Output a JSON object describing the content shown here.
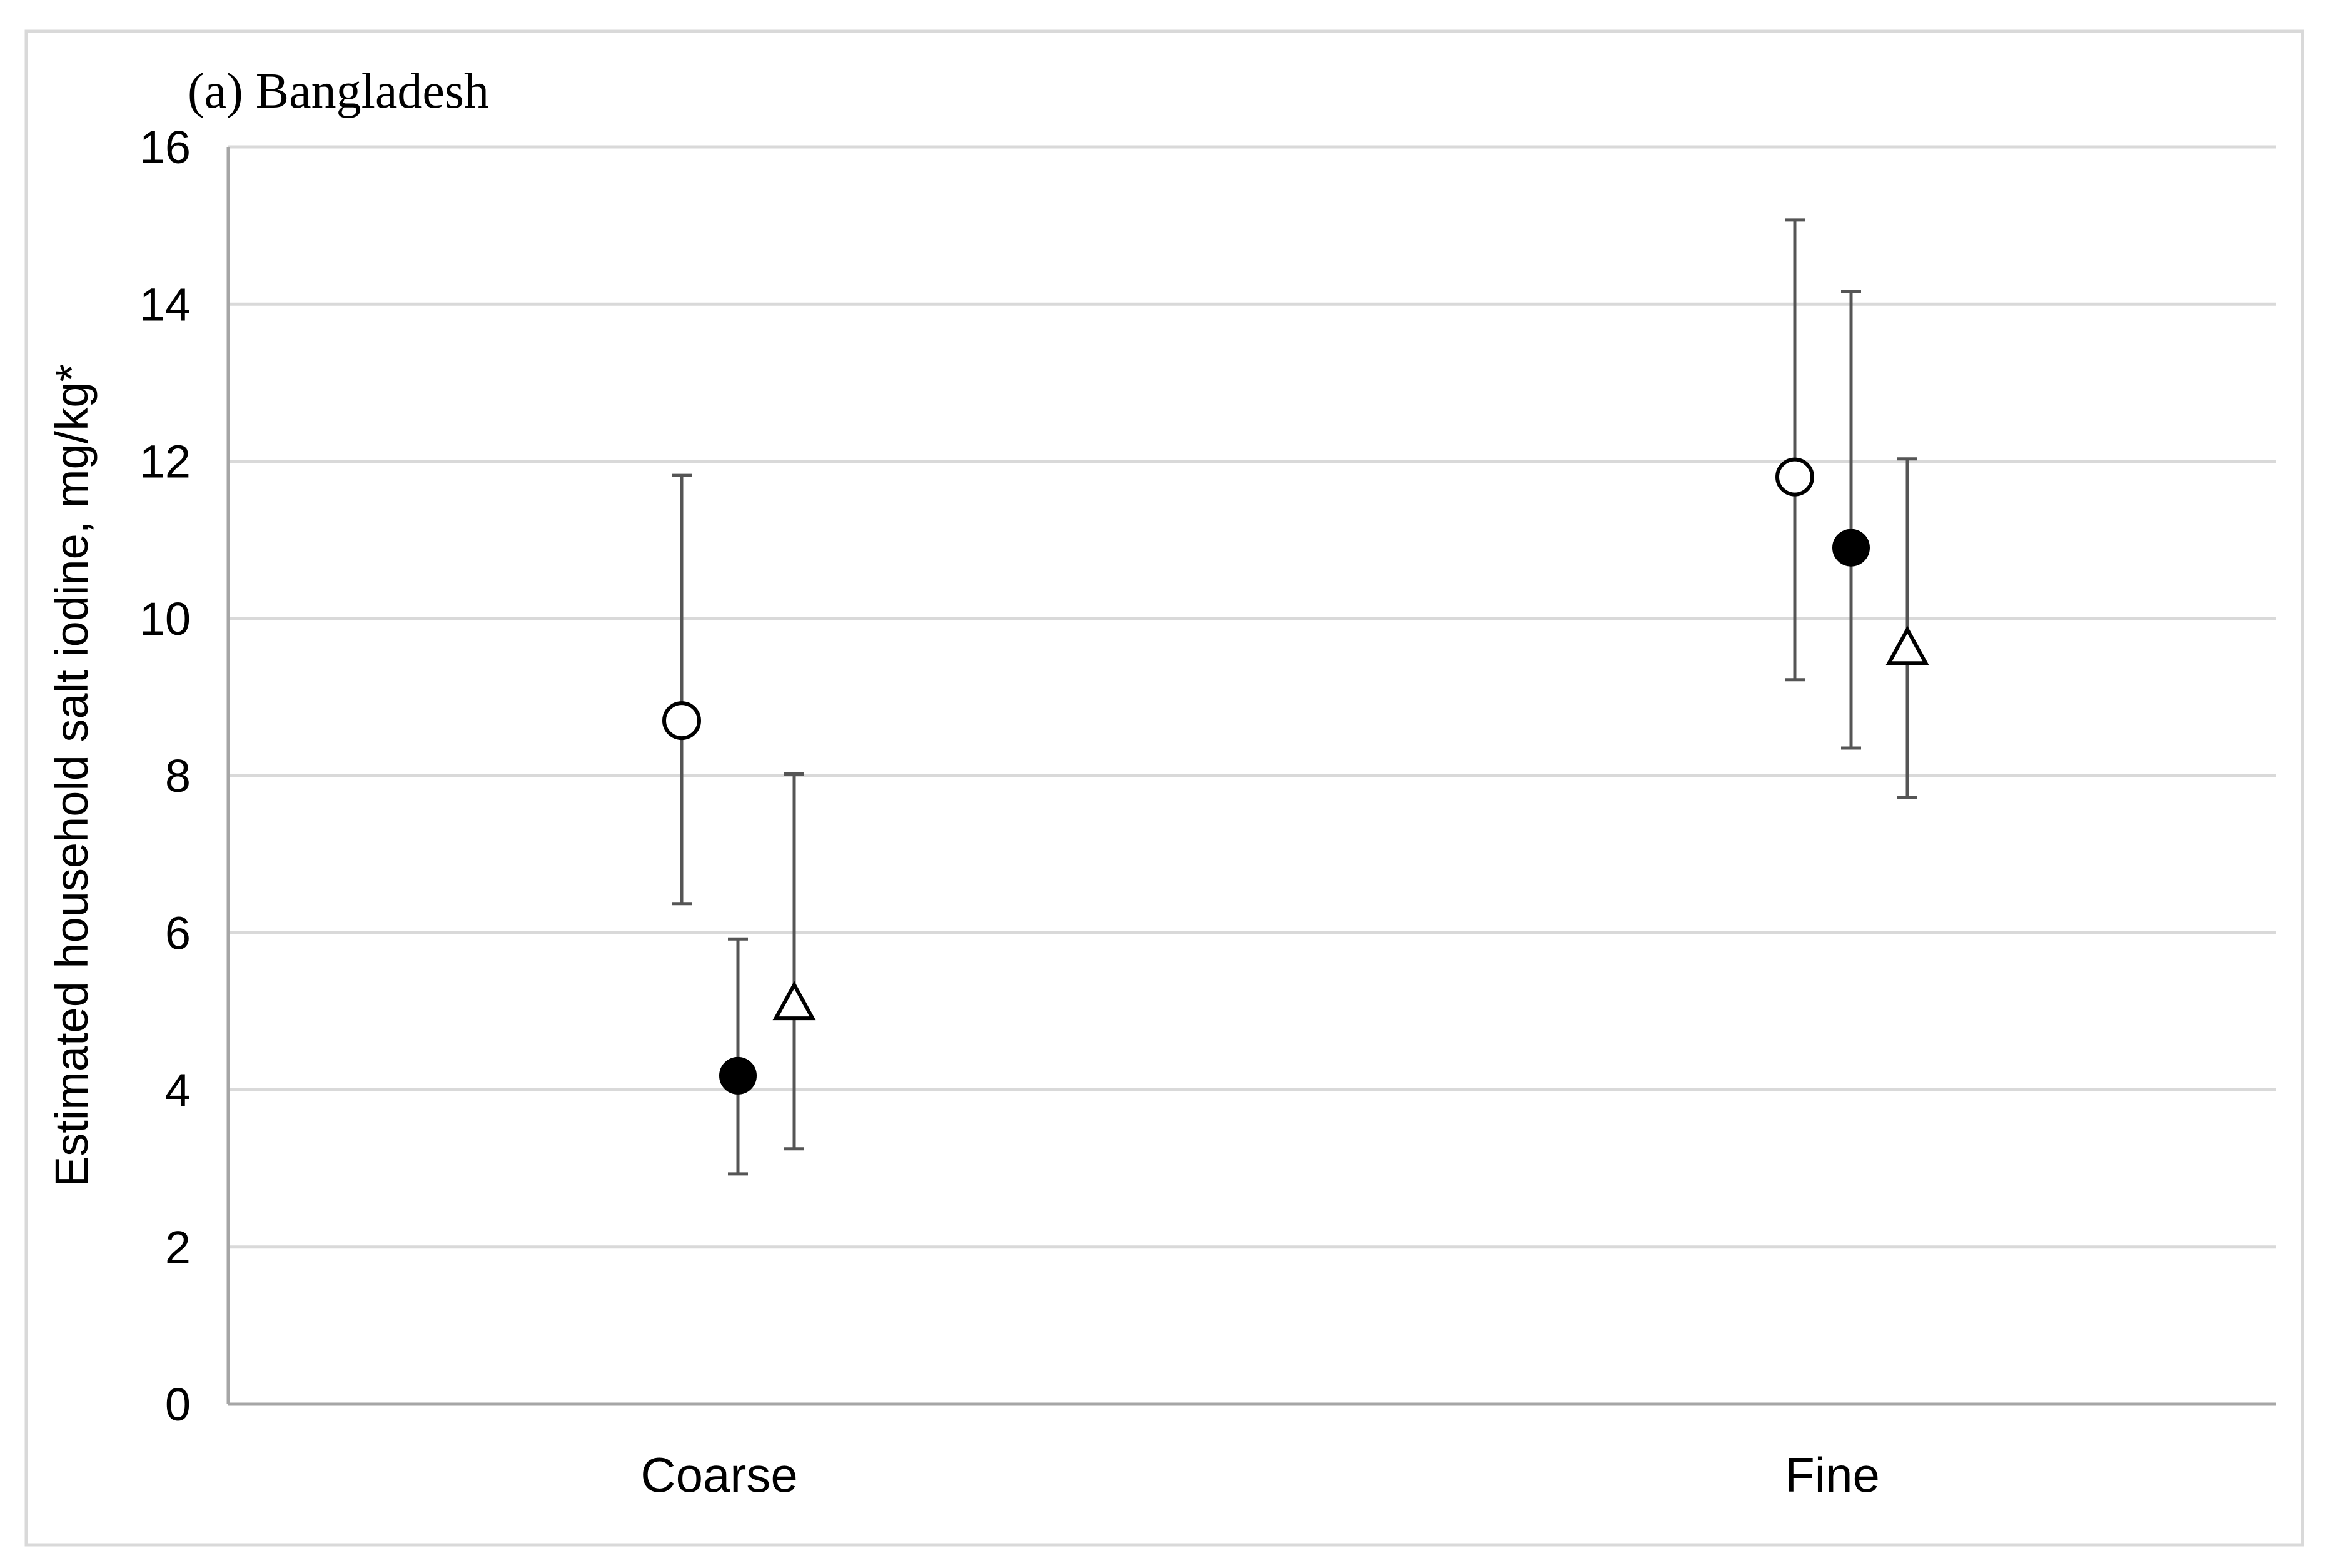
{
  "chart_data": {
    "type": "scatter",
    "title": "(a) Bangladesh",
    "ylabel": "Estimated household salt iodine, mg/kg*",
    "xlabel": "",
    "ylim": [
      0,
      16
    ],
    "yticks": [
      0,
      2,
      4,
      6,
      8,
      10,
      12,
      14,
      16
    ],
    "categories": [
      "Coarse",
      "Fine"
    ],
    "grid": true,
    "legend": "none",
    "series": [
      {
        "marker": "open-circle",
        "values": [
          8.7,
          11.8
        ],
        "lower": [
          6.37,
          9.22
        ],
        "upper": [
          11.82,
          15.07
        ]
      },
      {
        "marker": "filled-circle",
        "values": [
          4.18,
          10.9
        ],
        "lower": [
          2.93,
          8.35
        ],
        "upper": [
          5.92,
          14.16
        ]
      },
      {
        "marker": "open-triangle",
        "values": [
          5.1,
          9.62
        ],
        "lower": [
          3.25,
          7.72
        ],
        "upper": [
          8.02,
          12.03
        ]
      }
    ],
    "colors": {
      "grid": "#d9d9d9",
      "axis": "#a6a6a6",
      "errorbar": "#555555",
      "marker": "#000000",
      "frame": "#d9d9d9"
    }
  }
}
